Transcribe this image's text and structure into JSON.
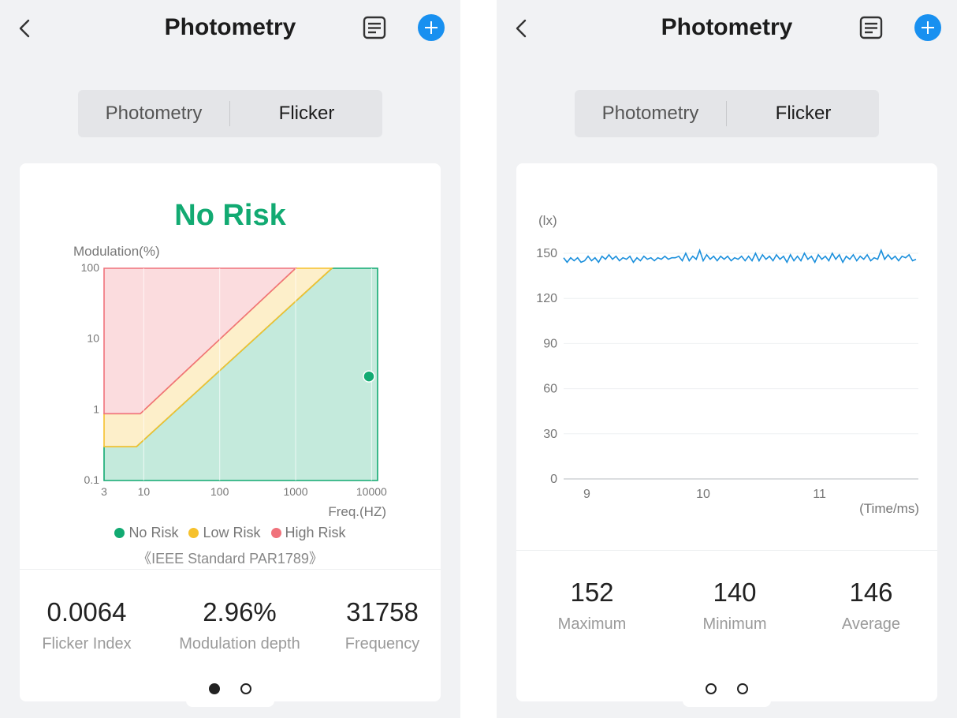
{
  "colors": {
    "accent": "#1890f0",
    "no_risk": "#12aa72",
    "low_risk": "#f6c12c",
    "high_risk": "#f0727b",
    "line": "#1a8fdc"
  },
  "left": {
    "header": {
      "title": "Photometry",
      "back_icon": "chevron-left-icon",
      "report_icon": "report-icon",
      "add_icon": "plus-icon"
    },
    "tabs": [
      {
        "label": "Photometry"
      },
      {
        "label": "Flicker"
      }
    ],
    "risk_label": "No Risk",
    "legend": [
      {
        "label": "No Risk"
      },
      {
        "label": "Low Risk"
      },
      {
        "label": "High Risk"
      }
    ],
    "standard": "《IEEE Standard PAR1789》",
    "stats": [
      {
        "value": "0.0064",
        "label": "Flicker Index"
      },
      {
        "value": "2.96%",
        "label": "Modulation depth"
      },
      {
        "value": "31758",
        "label": "Frequency"
      }
    ],
    "pager": {
      "pages": 2,
      "active": 0
    }
  },
  "right": {
    "header": {
      "title": "Photometry",
      "back_icon": "chevron-left-icon",
      "report_icon": "report-icon",
      "add_icon": "plus-icon"
    },
    "tabs": [
      {
        "label": "Photometry"
      },
      {
        "label": "Flicker"
      }
    ],
    "stats": [
      {
        "value": "152",
        "label": "Maximum"
      },
      {
        "value": "140",
        "label": "Minimum"
      },
      {
        "value": "146",
        "label": "Average"
      }
    ],
    "pager": {
      "pages": 2,
      "active": -1
    }
  },
  "chart_data": [
    {
      "type": "area",
      "ylabel": "Modulation(%)",
      "xlabel": "Freq.(HZ)",
      "x_scale": "log",
      "y_scale": "log",
      "x_ticks": [
        {
          "value": 3,
          "label": "3"
        },
        {
          "value": 10,
          "label": "10"
        },
        {
          "value": 100,
          "label": "100"
        },
        {
          "value": 1000,
          "label": "1000"
        },
        {
          "value": 10000,
          "label": "10000"
        }
      ],
      "y_ticks": [
        {
          "value": 0.1,
          "label": "0.1"
        },
        {
          "value": 1,
          "label": "1"
        },
        {
          "value": 10,
          "label": "10"
        },
        {
          "value": 100,
          "label": "100"
        }
      ],
      "xlim": [
        3,
        12000
      ],
      "ylim": [
        0.1,
        100
      ],
      "regions": [
        {
          "name": "High Risk",
          "color": "#f0727b",
          "points": [
            [
              3,
              100
            ],
            [
              1000,
              100
            ],
            [
              9,
              0.88
            ],
            [
              3,
              0.88
            ]
          ]
        },
        {
          "name": "Low Risk",
          "color": "#f6c12c",
          "points": [
            [
              3,
              0.88
            ],
            [
              9,
              0.88
            ],
            [
              1000,
              100
            ],
            [
              3000,
              100
            ],
            [
              8,
              0.3
            ],
            [
              3,
              0.3
            ]
          ]
        },
        {
          "name": "No Risk",
          "color": "#12aa72",
          "points": [
            [
              3,
              0.3
            ],
            [
              8,
              0.3
            ],
            [
              3000,
              100
            ],
            [
              12000,
              100
            ],
            [
              12000,
              0.1
            ],
            [
              3,
              0.1
            ]
          ]
        }
      ],
      "measurement": {
        "x": 31758,
        "y": 2.96,
        "color": "#12aa72"
      }
    },
    {
      "type": "line",
      "ylabel": "(lx)",
      "xlabel": "(Time/ms)",
      "x_ticks": [
        {
          "value": 9,
          "label": "9"
        },
        {
          "value": 10,
          "label": "10"
        },
        {
          "value": 11,
          "label": "11"
        }
      ],
      "y_ticks": [
        {
          "value": 0,
          "label": "0"
        },
        {
          "value": 30,
          "label": "30"
        },
        {
          "value": 60,
          "label": "60"
        },
        {
          "value": 90,
          "label": "90"
        },
        {
          "value": 120,
          "label": "120"
        },
        {
          "value": 150,
          "label": "150"
        }
      ],
      "xlim": [
        8.8,
        11.85
      ],
      "ylim": [
        0,
        150
      ],
      "grid": true,
      "series": [
        {
          "values": [
            [
              8.8,
              147
            ],
            [
              8.83,
              144
            ],
            [
              8.86,
              147
            ],
            [
              8.89,
              145
            ],
            [
              8.92,
              147
            ],
            [
              8.95,
              144
            ],
            [
              8.98,
              145
            ],
            [
              9.01,
              148
            ],
            [
              9.04,
              145
            ],
            [
              9.07,
              147
            ],
            [
              9.1,
              144
            ],
            [
              9.13,
              148
            ],
            [
              9.16,
              146
            ],
            [
              9.19,
              149
            ],
            [
              9.22,
              146
            ],
            [
              9.25,
              148
            ],
            [
              9.28,
              145
            ],
            [
              9.31,
              147
            ],
            [
              9.34,
              146
            ],
            [
              9.37,
              148
            ],
            [
              9.4,
              144
            ],
            [
              9.43,
              147
            ],
            [
              9.46,
              145
            ],
            [
              9.49,
              148
            ],
            [
              9.52,
              146
            ],
            [
              9.55,
              147
            ],
            [
              9.58,
              145
            ],
            [
              9.61,
              147
            ],
            [
              9.64,
              146
            ],
            [
              9.67,
              148
            ],
            [
              9.7,
              146
            ],
            [
              9.73,
              147
            ],
            [
              9.76,
              147
            ],
            [
              9.79,
              148
            ],
            [
              9.82,
              145
            ],
            [
              9.85,
              150
            ],
            [
              9.88,
              145
            ],
            [
              9.91,
              148
            ],
            [
              9.94,
              146
            ],
            [
              9.97,
              152
            ],
            [
              10.0,
              145
            ],
            [
              10.03,
              149
            ],
            [
              10.06,
              146
            ],
            [
              10.09,
              148
            ],
            [
              10.12,
              145
            ],
            [
              10.15,
              148
            ],
            [
              10.18,
              146
            ],
            [
              10.21,
              148
            ],
            [
              10.24,
              145
            ],
            [
              10.27,
              147
            ],
            [
              10.3,
              146
            ],
            [
              10.33,
              148
            ],
            [
              10.36,
              145
            ],
            [
              10.39,
              148
            ],
            [
              10.42,
              145
            ],
            [
              10.45,
              150
            ],
            [
              10.48,
              145
            ],
            [
              10.51,
              149
            ],
            [
              10.54,
              146
            ],
            [
              10.57,
              148
            ],
            [
              10.6,
              145
            ],
            [
              10.63,
              149
            ],
            [
              10.66,
              146
            ],
            [
              10.69,
              148
            ],
            [
              10.72,
              144
            ],
            [
              10.75,
              149
            ],
            [
              10.78,
              145
            ],
            [
              10.81,
              148
            ],
            [
              10.84,
              145
            ],
            [
              10.87,
              150
            ],
            [
              10.9,
              146
            ],
            [
              10.93,
              148
            ],
            [
              10.96,
              144
            ],
            [
              10.99,
              149
            ],
            [
              11.02,
              146
            ],
            [
              11.05,
              148
            ],
            [
              11.08,
              145
            ],
            [
              11.11,
              150
            ],
            [
              11.14,
              146
            ],
            [
              11.17,
              149
            ],
            [
              11.2,
              144
            ],
            [
              11.23,
              148
            ],
            [
              11.26,
              146
            ],
            [
              11.29,
              149
            ],
            [
              11.32,
              145
            ],
            [
              11.35,
              148
            ],
            [
              11.38,
              146
            ],
            [
              11.41,
              149
            ],
            [
              11.44,
              145
            ],
            [
              11.47,
              147
            ],
            [
              11.5,
              146
            ],
            [
              11.53,
              152
            ],
            [
              11.56,
              146
            ],
            [
              11.59,
              149
            ],
            [
              11.62,
              146
            ],
            [
              11.65,
              148
            ],
            [
              11.68,
              145
            ],
            [
              11.71,
              148
            ],
            [
              11.74,
              147
            ],
            [
              11.77,
              149
            ],
            [
              11.8,
              145
            ],
            [
              11.83,
              146
            ]
          ]
        }
      ]
    }
  ]
}
